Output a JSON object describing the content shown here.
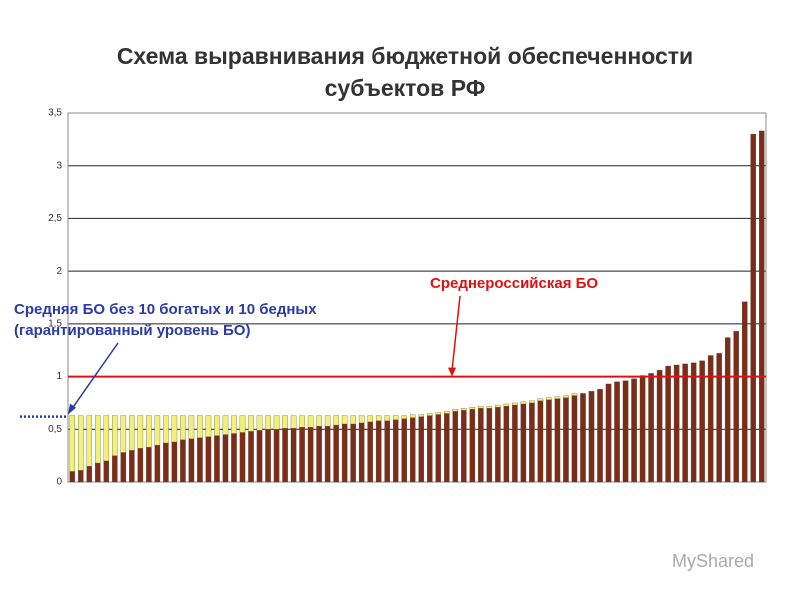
{
  "chart_data": {
    "type": "stacked_bar",
    "title": [
      "Схема выравнивания бюджетной обеспеченности",
      "субъектов РФ"
    ],
    "categories": [
      null,
      null,
      null,
      null,
      null,
      null,
      null,
      null,
      null,
      null,
      null,
      null,
      null,
      null,
      null,
      null,
      null,
      null,
      null,
      null,
      null,
      null,
      null,
      null,
      null,
      null,
      null,
      null,
      null,
      null,
      null,
      null,
      null,
      null,
      null,
      null,
      null,
      null,
      null,
      null,
      null,
      null,
      null,
      null,
      null,
      null,
      null,
      null,
      null,
      null,
      null,
      null,
      null,
      null,
      null,
      null,
      null,
      null,
      null,
      null,
      null,
      null,
      null,
      null,
      null,
      null,
      null,
      null,
      null,
      null,
      null,
      null,
      null,
      null,
      null,
      null,
      null,
      null,
      null,
      null,
      null,
      null
    ],
    "series": [
      {
        "color": "#7b2c1a",
        "values": [
          0.1,
          0.11,
          0.15,
          0.18,
          0.2,
          0.25,
          0.28,
          0.3,
          0.32,
          0.33,
          0.35,
          0.37,
          0.38,
          0.4,
          0.41,
          0.42,
          0.43,
          0.44,
          0.45,
          0.46,
          0.47,
          0.48,
          0.49,
          0.5,
          0.5,
          0.51,
          0.51,
          0.52,
          0.52,
          0.53,
          0.53,
          0.54,
          0.55,
          0.55,
          0.56,
          0.57,
          0.58,
          0.58,
          0.59,
          0.6,
          0.61,
          0.62,
          0.63,
          0.64,
          0.65,
          0.67,
          0.68,
          0.69,
          0.7,
          0.7,
          0.71,
          0.72,
          0.73,
          0.74,
          0.75,
          0.77,
          0.78,
          0.79,
          0.8,
          0.82,
          0.84,
          0.86,
          0.88,
          0.93,
          0.95,
          0.96,
          0.98,
          1.01,
          1.03,
          1.06,
          1.1,
          1.11,
          1.12,
          1.13,
          1.15,
          1.2,
          1.22,
          1.37,
          1.43,
          1.71,
          3.3,
          3.33
        ]
      },
      {
        "color": "#f0f07a",
        "values": [
          0.53,
          0.52,
          0.48,
          0.45,
          0.43,
          0.38,
          0.35,
          0.33,
          0.31,
          0.3,
          0.28,
          0.26,
          0.25,
          0.23,
          0.22,
          0.21,
          0.2,
          0.19,
          0.18,
          0.17,
          0.16,
          0.15,
          0.14,
          0.13,
          0.13,
          0.12,
          0.12,
          0.11,
          0.11,
          0.1,
          0.1,
          0.09,
          0.08,
          0.08,
          0.07,
          0.06,
          0.05,
          0.05,
          0.04,
          0.03,
          0.03,
          0.02,
          0.02,
          0.02,
          0.02,
          0.02,
          0.02,
          0.02,
          0.02,
          0.02,
          0.02,
          0.02,
          0.02,
          0.02,
          0.02,
          0.02,
          0.02,
          0.02,
          0.02,
          0.02,
          0,
          0,
          0,
          0,
          0,
          0,
          0,
          0,
          0,
          0,
          0,
          0,
          0,
          0,
          0,
          0,
          0,
          0,
          0,
          0,
          0,
          0
        ]
      }
    ],
    "ylim": [
      0,
      3.5
    ],
    "yticks": [
      0,
      {
        "value": 0.5,
        "label": "0,5"
      },
      1,
      {
        "value": 1.5,
        "label": "1,5"
      },
      2,
      {
        "value": 2.5,
        "label": "2,5"
      },
      3,
      {
        "value": 3.5,
        "label": "3,5"
      }
    ],
    "grid": true,
    "reference_lines": [
      {
        "value": 1,
        "color": "#e01010",
        "label": [
          "Среднероссийская БО"
        ]
      },
      {
        "value": 0.62,
        "color": "#2a3aa8",
        "label": [
          "Средняя БО без 10 богатых и 10 бедных",
          "(гарантированный уровень БО)"
        ]
      }
    ],
    "watermark": "MyShared"
  }
}
